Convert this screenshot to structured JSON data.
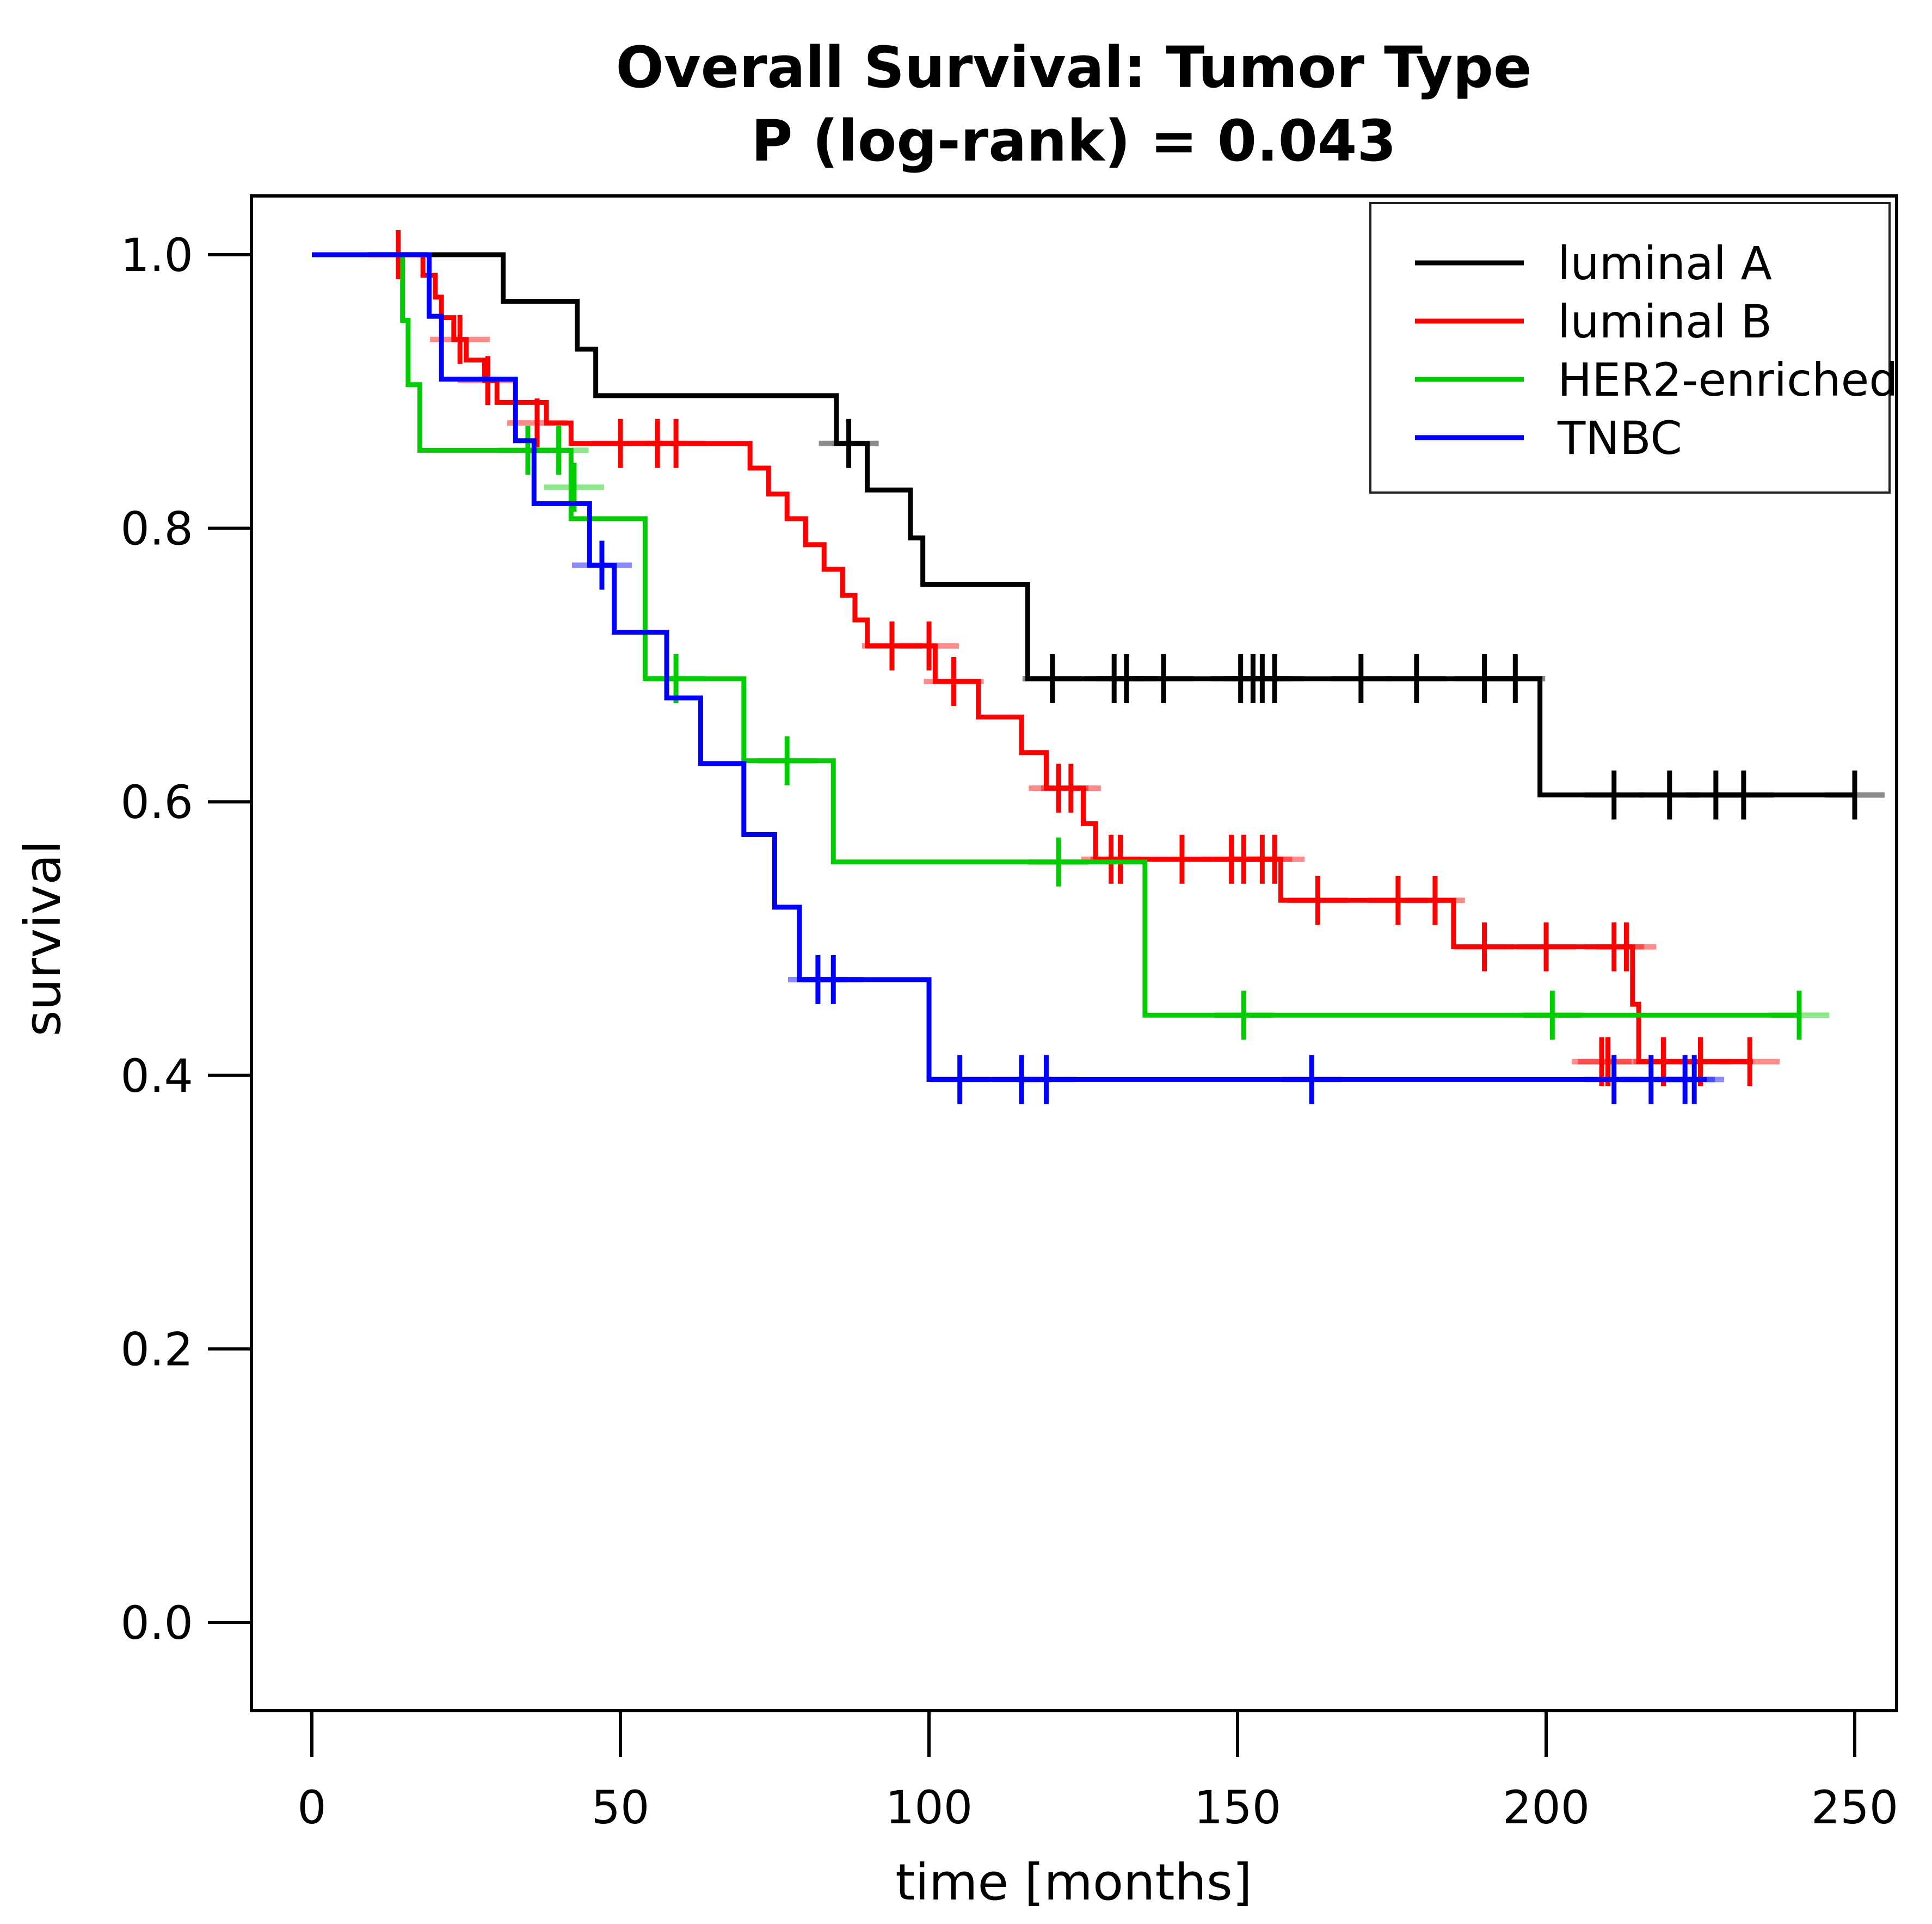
{
  "chart_data": {
    "type": "line",
    "subtype": "kaplan-meier-step",
    "title": "Overall Survival: Tumor Type",
    "subtitle": "P (log-rank) = 0.043",
    "xlabel": "time [months]",
    "ylabel": "survival",
    "xlim": [
      0,
      250
    ],
    "ylim": [
      0.0,
      1.0
    ],
    "xticks": [
      0,
      50,
      100,
      150,
      200,
      250
    ],
    "yticks": [
      0.0,
      0.2,
      0.4,
      0.6,
      0.8,
      1.0
    ],
    "grid": false,
    "legend_position": "top-right",
    "background": "#ffffff",
    "axis_color": "#000000",
    "series": [
      {
        "name": "luminal A",
        "color": "#000000",
        "start": [
          0,
          1.0
        ],
        "steps": [
          [
            31,
            0.966
          ],
          [
            43,
            0.931
          ],
          [
            46,
            0.897
          ],
          [
            85,
            0.862
          ],
          [
            90,
            0.828
          ],
          [
            97,
            0.793
          ],
          [
            99,
            0.759
          ],
          [
            116,
            0.69
          ],
          [
            199,
            0.605
          ]
        ],
        "censors": [
          [
            87,
            0.862
          ],
          [
            120,
            0.69
          ],
          [
            130,
            0.69
          ],
          [
            132,
            0.69
          ],
          [
            138,
            0.69
          ],
          [
            150.5,
            0.69
          ],
          [
            152.5,
            0.69
          ],
          [
            154,
            0.69
          ],
          [
            156,
            0.69
          ],
          [
            170,
            0.69
          ],
          [
            179,
            0.69
          ],
          [
            190,
            0.69
          ],
          [
            195,
            0.69
          ],
          [
            211,
            0.605
          ],
          [
            220,
            0.605
          ],
          [
            227.5,
            0.605
          ],
          [
            232,
            0.605
          ],
          [
            250,
            0.605
          ]
        ],
        "end_t": 250
      },
      {
        "name": "luminal B",
        "color": "#ff0000",
        "start": [
          0,
          1.0
        ],
        "steps": [
          [
            18,
            0.985
          ],
          [
            20,
            0.969
          ],
          [
            21,
            0.954
          ],
          [
            23,
            0.938
          ],
          [
            25,
            0.923
          ],
          [
            28,
            0.908
          ],
          [
            30,
            0.892
          ],
          [
            38,
            0.877
          ],
          [
            42,
            0.862
          ],
          [
            71,
            0.844
          ],
          [
            74,
            0.825
          ],
          [
            77,
            0.807
          ],
          [
            80,
            0.788
          ],
          [
            83,
            0.77
          ],
          [
            86,
            0.751
          ],
          [
            88,
            0.733
          ],
          [
            90,
            0.714
          ],
          [
            101,
            0.688
          ],
          [
            108,
            0.662
          ],
          [
            115,
            0.636
          ],
          [
            119,
            0.61
          ],
          [
            125,
            0.584
          ],
          [
            127,
            0.558
          ],
          [
            157,
            0.528
          ],
          [
            185,
            0.494
          ],
          [
            214,
            0.452
          ],
          [
            215,
            0.41
          ]
        ],
        "censors": [
          [
            14,
            1.0
          ],
          [
            24,
            0.938
          ],
          [
            28.5,
            0.908
          ],
          [
            36.5,
            0.877
          ],
          [
            50,
            0.862
          ],
          [
            56,
            0.862
          ],
          [
            59,
            0.862
          ],
          [
            94,
            0.714
          ],
          [
            100,
            0.714
          ],
          [
            104,
            0.688
          ],
          [
            121,
            0.61
          ],
          [
            123,
            0.61
          ],
          [
            129.5,
            0.558
          ],
          [
            131,
            0.558
          ],
          [
            141,
            0.558
          ],
          [
            149,
            0.558
          ],
          [
            151,
            0.558
          ],
          [
            154,
            0.558
          ],
          [
            156,
            0.558
          ],
          [
            163,
            0.528
          ],
          [
            176,
            0.528
          ],
          [
            182,
            0.528
          ],
          [
            190,
            0.494
          ],
          [
            200,
            0.494
          ],
          [
            211,
            0.494
          ],
          [
            213,
            0.494
          ],
          [
            209,
            0.41
          ],
          [
            210,
            0.41
          ],
          [
            219,
            0.41
          ],
          [
            225,
            0.41
          ],
          [
            233,
            0.41
          ]
        ],
        "end_t": 233.5
      },
      {
        "name": "HER2-enriched",
        "color": "#00cd00",
        "start": [
          0,
          1.0
        ],
        "steps": [
          [
            14.7,
            0.952
          ],
          [
            15.6,
            0.905
          ],
          [
            17.5,
            0.857
          ],
          [
            42,
            0.807
          ],
          [
            54,
            0.69
          ],
          [
            70,
            0.63
          ],
          [
            84.5,
            0.556
          ],
          [
            135,
            0.444
          ]
        ],
        "censors": [
          [
            35,
            0.857
          ],
          [
            40,
            0.857
          ],
          [
            42.5,
            0.83
          ],
          [
            59,
            0.69
          ],
          [
            77,
            0.63
          ],
          [
            121,
            0.556
          ],
          [
            151,
            0.444
          ],
          [
            201,
            0.444
          ],
          [
            241,
            0.444
          ]
        ],
        "end_t": 241
      },
      {
        "name": "TNBC",
        "color": "#0000ff",
        "start": [
          0,
          1.0
        ],
        "steps": [
          [
            19,
            0.955
          ],
          [
            21,
            0.909
          ],
          [
            33,
            0.864
          ],
          [
            36,
            0.818
          ],
          [
            45,
            0.773
          ],
          [
            49,
            0.724
          ],
          [
            57.5,
            0.676
          ],
          [
            63,
            0.628
          ],
          [
            70,
            0.576
          ],
          [
            75,
            0.523
          ],
          [
            79,
            0.47
          ],
          [
            100,
            0.397
          ]
        ],
        "censors": [
          [
            47,
            0.773
          ],
          [
            82,
            0.47
          ],
          [
            84.5,
            0.47
          ],
          [
            105,
            0.397
          ],
          [
            115,
            0.397
          ],
          [
            119,
            0.397
          ],
          [
            162,
            0.397
          ],
          [
            211,
            0.397
          ],
          [
            217,
            0.397
          ],
          [
            222.5,
            0.397
          ],
          [
            224,
            0.397
          ]
        ],
        "end_t": 226
      }
    ]
  }
}
